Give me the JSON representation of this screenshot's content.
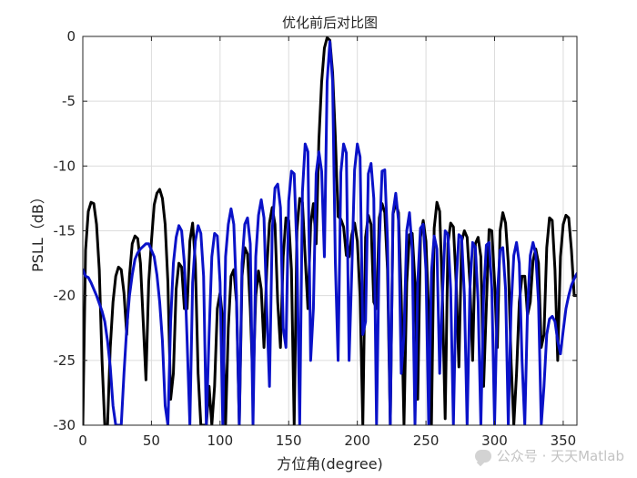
{
  "chart_data": {
    "type": "line",
    "title": "优化前后对比图",
    "xlabel": "方位角(degree)",
    "ylabel": "PSLL（dB）",
    "xlim": [
      0,
      360
    ],
    "ylim": [
      -30,
      0
    ],
    "xticks": [
      0,
      50,
      100,
      150,
      200,
      250,
      300,
      350
    ],
    "yticks": [
      0,
      -5,
      -10,
      -15,
      -20,
      -25,
      -30
    ],
    "grid": true,
    "series": [
      {
        "color": "#000000",
        "x": [
          0,
          2,
          4,
          6,
          8,
          10,
          12,
          14,
          16,
          18,
          20,
          22,
          24,
          26,
          28,
          30,
          32,
          34,
          36,
          38,
          40,
          42,
          44,
          46,
          48,
          50,
          52,
          54,
          56,
          58,
          60,
          62,
          64,
          66,
          68,
          70,
          72,
          74,
          76,
          78,
          80,
          82,
          84,
          86,
          88,
          90,
          92,
          94,
          96,
          98,
          100,
          102,
          104,
          106,
          108,
          110,
          112,
          114,
          116,
          118,
          120,
          122,
          124,
          126,
          128,
          130,
          132,
          134,
          136,
          138,
          140,
          142,
          144,
          146,
          148,
          150,
          152,
          154,
          156,
          158,
          160,
          162,
          164,
          166,
          168,
          170,
          172,
          174,
          176,
          178,
          180,
          182,
          184,
          186,
          188,
          190,
          192,
          194,
          196,
          198,
          200,
          202,
          204,
          206,
          208,
          210,
          212,
          214,
          216,
          218,
          220,
          222,
          224,
          226,
          228,
          230,
          232,
          234,
          236,
          238,
          240,
          242,
          244,
          246,
          248,
          250,
          252,
          254,
          256,
          258,
          260,
          262,
          264,
          266,
          268,
          270,
          272,
          274,
          276,
          278,
          280,
          282,
          284,
          286,
          288,
          290,
          292,
          294,
          296,
          298,
          300,
          302,
          304,
          306,
          308,
          310,
          312,
          314,
          316,
          318,
          320,
          322,
          324,
          326,
          328,
          330,
          332,
          334,
          336,
          338,
          340,
          342,
          344,
          346,
          348,
          350,
          352,
          354,
          356,
          358,
          360
        ],
        "y": [
          -30,
          -16.5,
          -13.5,
          -12.8,
          -12.9,
          -14.5,
          -18,
          -25,
          -30,
          -30,
          -24,
          -20.5,
          -18.5,
          -17.8,
          -18,
          -19.8,
          -23,
          -18.5,
          -16,
          -15.4,
          -15.6,
          -17.5,
          -22,
          -26.5,
          -19,
          -15.8,
          -13,
          -12.1,
          -11.8,
          -12.5,
          -14.5,
          -19,
          -28,
          -26,
          -19.5,
          -17.5,
          -17.8,
          -21,
          -21,
          -15.8,
          -14.4,
          -17.5,
          -26,
          -30,
          -30,
          -30,
          -27,
          -30,
          -27,
          -21,
          -19.8,
          -22,
          -30,
          -22.5,
          -18.5,
          -18,
          -20.5,
          -30,
          -18.5,
          -16.3,
          -16.8,
          -21,
          -27,
          -20,
          -18.1,
          -19.5,
          -24,
          -18,
          -14.4,
          -13.2,
          -14.5,
          -20.5,
          -24,
          -17,
          -14,
          -14.2,
          -18,
          -30,
          -15,
          -12.5,
          -12.8,
          -17,
          -21,
          -14.5,
          -12.9,
          -16,
          -8,
          -3.5,
          -0.9,
          -0.1,
          -0.3,
          -2.8,
          -7.8,
          -13.9,
          -14.1,
          -14.7,
          -16.9,
          -17,
          -15.3,
          -14.4,
          -15.8,
          -20,
          -30,
          -15.5,
          -13.8,
          -14.5,
          -20.5,
          -21,
          -14,
          -12.9,
          -13.6,
          -18,
          -30,
          -13.7,
          -12.9,
          -13.6,
          -20,
          -30,
          -19,
          -15.3,
          -15.2,
          -19,
          -28,
          -15.5,
          -14.2,
          -15.8,
          -21.5,
          -30,
          -14.8,
          -12.8,
          -13.5,
          -20,
          -29.5,
          -16,
          -14.4,
          -14.7,
          -19,
          -25.5,
          -15.8,
          -15,
          -15.5,
          -19,
          -25,
          -16,
          -15.5,
          -17,
          -27,
          -20.8,
          -14.9,
          -15,
          -19,
          -24,
          -15,
          -13.6,
          -14.4,
          -17.5,
          -25,
          -30,
          -26,
          -20.5,
          -18.5,
          -18.5,
          -21.5,
          -20.5,
          -17.3,
          -16.4,
          -17.5,
          -24,
          -23,
          -16.3,
          -14,
          -14.2,
          -18,
          -25,
          -17,
          -14.5,
          -13.8,
          -14,
          -16.5,
          -20,
          -20
        ]
      },
      {
        "color": "#0a12c8",
        "x": [
          0,
          2,
          4,
          6,
          8,
          10,
          12,
          14,
          16,
          18,
          20,
          22,
          24,
          26,
          28,
          30,
          32,
          34,
          36,
          38,
          40,
          42,
          44,
          46,
          48,
          50,
          52,
          54,
          56,
          58,
          60,
          62,
          64,
          66,
          68,
          70,
          72,
          74,
          76,
          78,
          80,
          82,
          84,
          86,
          88,
          90,
          92,
          94,
          96,
          98,
          100,
          102,
          104,
          106,
          108,
          110,
          112,
          114,
          116,
          118,
          120,
          122,
          124,
          126,
          128,
          130,
          132,
          134,
          136,
          138,
          140,
          142,
          144,
          146,
          148,
          150,
          152,
          154,
          156,
          158,
          160,
          162,
          164,
          166,
          168,
          170,
          172,
          174,
          176,
          178,
          180,
          182,
          184,
          186,
          188,
          190,
          192,
          194,
          196,
          198,
          200,
          202,
          204,
          206,
          208,
          210,
          212,
          214,
          216,
          218,
          220,
          222,
          224,
          226,
          228,
          230,
          232,
          234,
          236,
          238,
          240,
          242,
          244,
          246,
          248,
          250,
          252,
          254,
          256,
          258,
          260,
          262,
          264,
          266,
          268,
          270,
          272,
          274,
          276,
          278,
          280,
          282,
          284,
          286,
          288,
          290,
          292,
          294,
          296,
          298,
          300,
          302,
          304,
          306,
          308,
          310,
          312,
          314,
          316,
          318,
          320,
          322,
          324,
          326,
          328,
          330,
          332,
          334,
          336,
          338,
          340,
          342,
          344,
          346,
          348,
          350,
          352,
          354,
          356,
          358,
          360
        ],
        "y": [
          -18,
          -18.5,
          -18.6,
          -19,
          -19.5,
          -20,
          -20.6,
          -21.2,
          -22,
          -23.5,
          -25.5,
          -28.5,
          -30,
          -30,
          -30,
          -26,
          -22.5,
          -20,
          -18.4,
          -17.2,
          -16.7,
          -16.4,
          -16.2,
          -16,
          -16,
          -16.5,
          -17,
          -18.4,
          -20.5,
          -23.5,
          -28.5,
          -30,
          -22,
          -17.5,
          -15.5,
          -14.6,
          -15,
          -17.5,
          -23.5,
          -30,
          -19,
          -15.8,
          -14.6,
          -15.2,
          -18.5,
          -30,
          -23,
          -17,
          -15.2,
          -15.4,
          -19,
          -30,
          -17,
          -14.5,
          -13.3,
          -14.5,
          -20,
          -30,
          -17.5,
          -14.5,
          -14,
          -16,
          -30,
          -17,
          -13.8,
          -12.6,
          -14,
          -21,
          -27,
          -15,
          -11.7,
          -11.4,
          -13.2,
          -22.5,
          -24,
          -12.7,
          -10.4,
          -10.6,
          -16.5,
          -30,
          -12,
          -8.3,
          -8.9,
          -25,
          -21,
          -10.6,
          -8.9,
          -10.4,
          -17,
          -3.5,
          -0.4,
          -3.5,
          -17.5,
          -25,
          -10.5,
          -8.3,
          -9,
          -25,
          -18,
          -10.3,
          -8.3,
          -9.3,
          -23,
          -22,
          -10.6,
          -9.8,
          -12.5,
          -30,
          -16,
          -10.4,
          -10.3,
          -15.8,
          -30,
          -13.6,
          -12.1,
          -14.2,
          -26,
          -23,
          -15,
          -13.6,
          -16.5,
          -30,
          -19,
          -14.8,
          -14.5,
          -18,
          -30,
          -18.2,
          -15.4,
          -16.4,
          -26,
          -20,
          -15,
          -15.3,
          -19.5,
          -30,
          -19.2,
          -15.3,
          -15.5,
          -20,
          -30,
          -19.5,
          -15.9,
          -16.3,
          -20.5,
          -30,
          -20,
          -16.1,
          -15.9,
          -19.5,
          -30,
          -20,
          -16.5,
          -16.3,
          -19.5,
          -30,
          -21,
          -16.9,
          -15.9,
          -17.5,
          -25,
          -30,
          -21,
          -16.9,
          -15.9,
          -16.8,
          -20.5,
          -30,
          -27,
          -23,
          -21.8,
          -21.6,
          -22,
          -23.5,
          -24.5,
          -22.7,
          -21,
          -20,
          -19.2,
          -18.7,
          -18.3
        ]
      }
    ]
  },
  "watermark": {
    "text": "公众号 · 天天Matlab"
  }
}
